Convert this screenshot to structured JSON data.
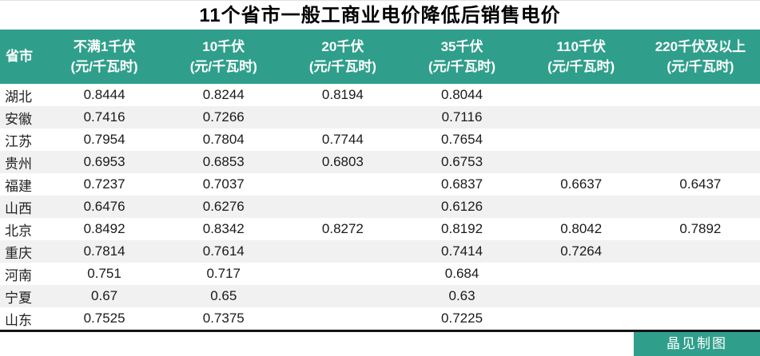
{
  "title": "11个省市一般工商业电价降低后销售电价",
  "table": {
    "columns": [
      {
        "label": "省市",
        "sub": ""
      },
      {
        "label": "不满1千伏",
        "sub": "(元/千瓦时)"
      },
      {
        "label": "10千伏",
        "sub": "(元/千瓦时)"
      },
      {
        "label": "20千伏",
        "sub": "(元/千瓦时)"
      },
      {
        "label": "35千伏",
        "sub": "(元/千瓦时)"
      },
      {
        "label": "110千伏",
        "sub": "(元/千瓦时)"
      },
      {
        "label": "220千伏及以上",
        "sub": "(元/千瓦时)"
      }
    ],
    "rows": [
      {
        "province": "湖北",
        "values": [
          "0.8444",
          "0.8244",
          "0.8194",
          "0.8044",
          "",
          ""
        ]
      },
      {
        "province": "安徽",
        "values": [
          "0.7416",
          "0.7266",
          "",
          "0.7116",
          "",
          ""
        ]
      },
      {
        "province": "江苏",
        "values": [
          "0.7954",
          "0.7804",
          "0.7744",
          "0.7654",
          "",
          ""
        ]
      },
      {
        "province": "贵州",
        "values": [
          "0.6953",
          "0.6853",
          "0.6803",
          "0.6753",
          "",
          ""
        ]
      },
      {
        "province": "福建",
        "values": [
          "0.7237",
          "0.7037",
          "",
          "0.6837",
          "0.6637",
          "0.6437"
        ]
      },
      {
        "province": "山西",
        "values": [
          "0.6476",
          "0.6276",
          "",
          "0.6126",
          "",
          ""
        ]
      },
      {
        "province": "北京",
        "values": [
          "0.8492",
          "0.8342",
          "0.8272",
          "0.8192",
          "0.8042",
          "0.7892"
        ]
      },
      {
        "province": "重庆",
        "values": [
          "0.7814",
          "0.7614",
          "",
          "0.7414",
          "0.7264",
          ""
        ]
      },
      {
        "province": "河南",
        "values": [
          "0.751",
          "0.717",
          "",
          "0.684",
          "",
          ""
        ]
      },
      {
        "province": "宁夏",
        "values": [
          "0.67",
          "0.65",
          "",
          "0.63",
          "",
          ""
        ]
      },
      {
        "province": "山东",
        "values": [
          "0.7525",
          "0.7375",
          "",
          "0.7225",
          "",
          ""
        ]
      }
    ]
  },
  "footer": {
    "credit": "晶见制图"
  },
  "colors": {
    "header_bg": "#2f9f8b",
    "row_stripe": "#f1f1f1",
    "credit_bg": "#2f9f8b",
    "credit_text": "#ffffff",
    "bottom_border": "#141414"
  },
  "chart_data": {
    "type": "table",
    "title": "11个省市一般工商业电价降低后销售电价",
    "columns": [
      "省市",
      "不满1千伏(元/千瓦时)",
      "10千伏(元/千瓦时)",
      "20千伏(元/千瓦时)",
      "35千伏(元/千瓦时)",
      "110千伏(元/千瓦时)",
      "220千伏及以上(元/千瓦时)"
    ],
    "rows": [
      [
        "湖北",
        0.8444,
        0.8244,
        0.8194,
        0.8044,
        null,
        null
      ],
      [
        "安徽",
        0.7416,
        0.7266,
        null,
        0.7116,
        null,
        null
      ],
      [
        "江苏",
        0.7954,
        0.7804,
        0.7744,
        0.7654,
        null,
        null
      ],
      [
        "贵州",
        0.6953,
        0.6853,
        0.6803,
        0.6753,
        null,
        null
      ],
      [
        "福建",
        0.7237,
        0.7037,
        null,
        0.6837,
        0.6637,
        0.6437
      ],
      [
        "山西",
        0.6476,
        0.6276,
        null,
        0.6126,
        null,
        null
      ],
      [
        "北京",
        0.8492,
        0.8342,
        0.8272,
        0.8192,
        0.8042,
        0.7892
      ],
      [
        "重庆",
        0.7814,
        0.7614,
        null,
        0.7414,
        0.7264,
        null
      ],
      [
        "河南",
        0.751,
        0.717,
        null,
        0.684,
        null,
        null
      ],
      [
        "宁夏",
        0.67,
        0.65,
        null,
        0.63,
        null,
        null
      ],
      [
        "山东",
        0.7525,
        0.7375,
        null,
        0.7225,
        null,
        null
      ]
    ],
    "source_credit": "晶见制图"
  }
}
